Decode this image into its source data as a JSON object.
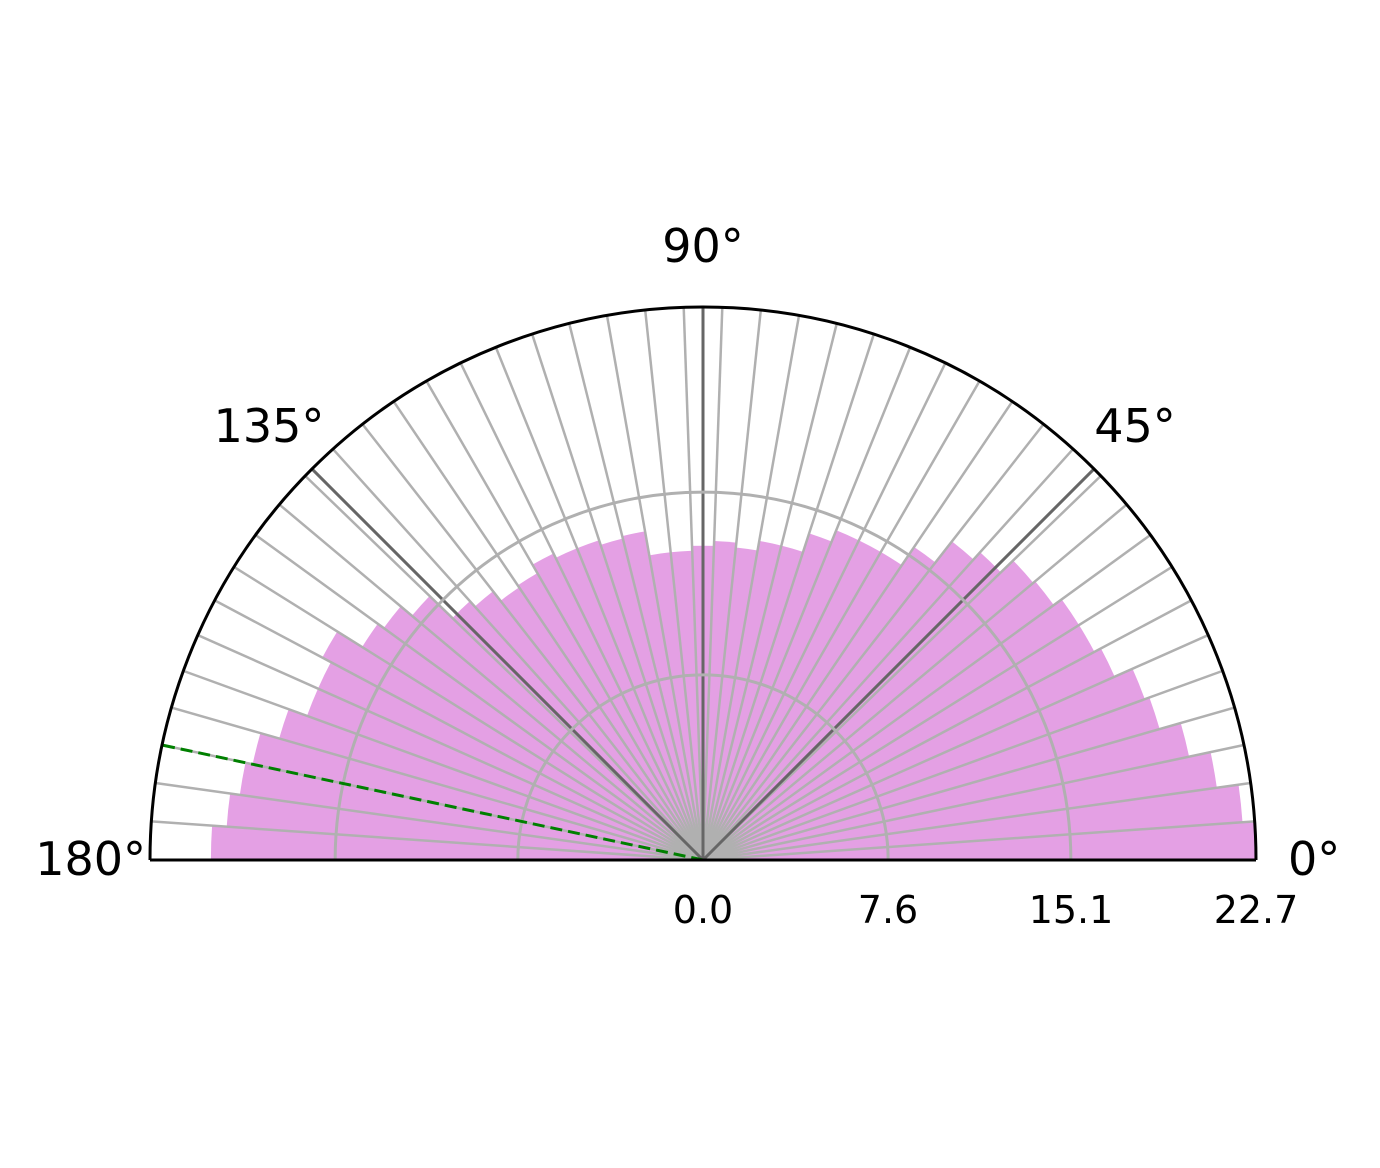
{
  "chart_data": {
    "type": "polar-bar",
    "title": "",
    "theta_range_deg": [
      0,
      180
    ],
    "r_range": [
      0,
      22.7
    ],
    "bar_color": "#e4a0e4",
    "grid_color": "#b0b0b0",
    "major_spoke_color": "#666666",
    "reference_line": {
      "angle_deg": 168,
      "color": "#008000",
      "style": "dashed"
    },
    "angle_tick_labels": [
      "0°",
      "45°",
      "90°",
      "135°",
      "180°"
    ],
    "radial_tick_labels": [
      "0.0",
      "7.6",
      "15.1",
      "22.7"
    ],
    "radial_tick_values": [
      0.0,
      7.6,
      15.1,
      22.7
    ],
    "bin_width_deg": 4,
    "bin_start_deg": [
      0,
      4,
      8,
      12,
      16,
      20,
      24,
      28,
      32,
      36,
      40,
      44,
      48,
      52,
      56,
      60,
      64,
      68,
      72,
      76,
      80,
      84,
      88,
      92,
      96,
      100,
      104,
      108,
      112,
      116,
      120,
      124,
      128,
      132,
      136,
      140,
      144,
      148,
      152,
      156,
      160,
      164,
      168,
      172,
      176
    ],
    "values": [
      22.7,
      22.2,
      21.3,
      20.4,
      19.5,
      19.3,
      18.5,
      18.2,
      18.2,
      17.8,
      17.7,
      17.0,
      16.6,
      15.5,
      14.6,
      14.6,
      14.6,
      14.1,
      13.3,
      13.3,
      12.9,
      13.1,
      12.9,
      12.7,
      12.7,
      13.7,
      13.6,
      13.8,
      13.8,
      14.0,
      13.6,
      13.5,
      14.0,
      14.3,
      15.6,
      16.2,
      16.5,
      17.7,
      17.3,
      17.3,
      18.1,
      18.9,
      19.2,
      19.6,
      20.2
    ]
  }
}
